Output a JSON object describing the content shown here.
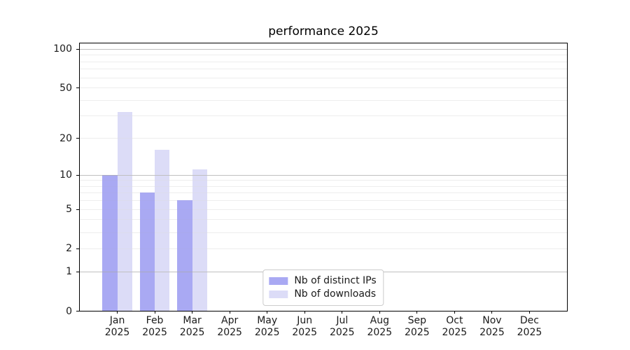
{
  "chart_data": {
    "type": "bar",
    "title": "performance 2025",
    "categories": [
      "Jan",
      "Feb",
      "Mar",
      "Apr",
      "May",
      "Jun",
      "Jul",
      "Aug",
      "Sep",
      "Oct",
      "Nov",
      "Dec"
    ],
    "category_year": "2025",
    "series": [
      {
        "name": "Nb of distinct IPs",
        "color": "#a9a9f3",
        "values": [
          10,
          7,
          6,
          0,
          0,
          0,
          0,
          0,
          0,
          0,
          0,
          0
        ]
      },
      {
        "name": "Nb of downloads",
        "color": "#dcdcf7",
        "values": [
          32,
          16,
          11,
          0,
          0,
          0,
          0,
          0,
          0,
          0,
          0,
          0
        ]
      }
    ],
    "y_scale": "log10(1+v)",
    "ylim": [
      0,
      110
    ],
    "y_ticks": [
      0,
      1,
      2,
      5,
      10,
      20,
      50,
      100
    ],
    "grid": {
      "major": [
        1,
        10,
        100
      ],
      "minor": [
        2,
        3,
        4,
        5,
        6,
        7,
        8,
        9,
        20,
        30,
        40,
        50,
        60,
        70,
        80,
        90
      ]
    },
    "legend_position": "lower center",
    "colors": {
      "grid_major": "#c0c0c0",
      "grid_minor": "#ededed",
      "spine": "#000000",
      "background": "#ffffff"
    }
  }
}
